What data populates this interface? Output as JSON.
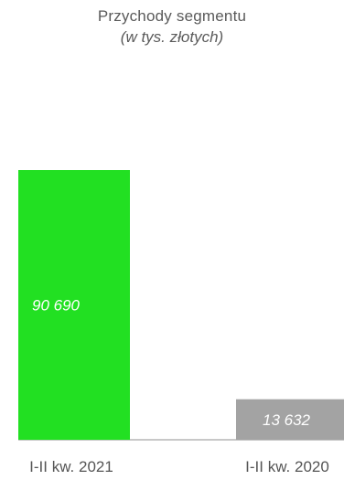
{
  "chart_data": {
    "type": "bar",
    "title": "Przychody segmentu",
    "subtitle": "(w tys. złotych)",
    "categories": [
      "I-II kw. 2021",
      "I-II kw. 2020"
    ],
    "values": [
      90690,
      13632
    ],
    "value_labels": [
      "90 690",
      "13 632"
    ],
    "colors": [
      "#22e022",
      "#a3a3a3"
    ],
    "baseline_color": "#c8c8c8",
    "ylim": [
      0,
      90690
    ],
    "grid": false,
    "legend": "none",
    "xlabel": "",
    "ylabel": ""
  }
}
